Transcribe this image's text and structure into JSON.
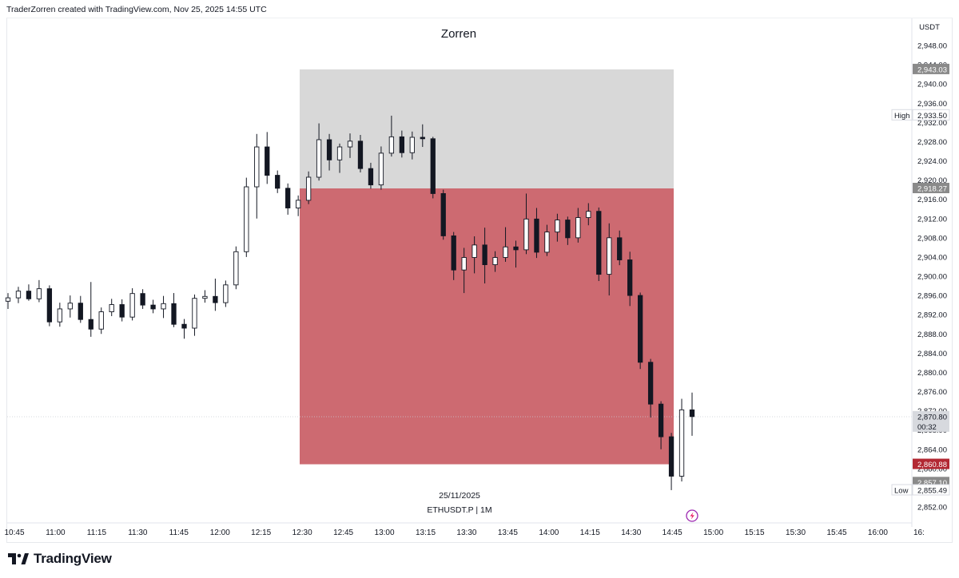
{
  "attribution": "TraderZorren created with TradingView.com, Nov 25, 2025 14:55 UTC",
  "brand": "TradingView",
  "colors": {
    "loss_zone": "#c0454d",
    "neutral_zone": "#c8c8c8",
    "candle": "#131722",
    "sl_tag": "#b22833",
    "tag_gray": "#8a8a8a"
  },
  "chart_data": {
    "type": "candlestick",
    "title": "Zorren",
    "currency": "USDT",
    "date_label": "25/11/2025",
    "symbol_label": "ETHUSDT.P | 1M",
    "x_ticks": [
      "10:45",
      "11:00",
      "11:15",
      "11:30",
      "11:45",
      "12:00",
      "12:15",
      "12:30",
      "12:45",
      "13:00",
      "13:15",
      "13:30",
      "13:45",
      "14:00",
      "14:15",
      "14:30",
      "14:45",
      "15:00",
      "15:15",
      "15:30",
      "15:45",
      "16:00",
      "16:"
    ],
    "y_ticks": [
      "2,948.00",
      "2,944.00",
      "2,940.00",
      "2,936.00",
      "2,932.00",
      "2,928.00",
      "2,924.00",
      "2,920.00",
      "2,916.00",
      "2,912.00",
      "2,908.00",
      "2,904.00",
      "2,900.00",
      "2,896.00",
      "2,892.00",
      "2,888.00",
      "2,884.00",
      "2,880.00",
      "2,876.00",
      "2,872.00",
      "2,868.00",
      "2,864.00",
      "2,860.00",
      "2,856.00",
      "2,852.00"
    ],
    "y_range": [
      2851,
      2950
    ],
    "price_tags": [
      {
        "name": "target",
        "label": "",
        "value": "2,943.03",
        "price": 2943.03,
        "style": "gray"
      },
      {
        "name": "high",
        "label": "High",
        "value": "2,933.50",
        "price": 2933.5,
        "style": "outline"
      },
      {
        "name": "entry",
        "label": "",
        "value": "2,918.27",
        "price": 2918.27,
        "style": "gray"
      },
      {
        "name": "current",
        "label": "",
        "value": "2,870.80",
        "sub": "00:32",
        "price": 2870.8,
        "style": "light"
      },
      {
        "name": "stop",
        "label": "",
        "value": "2,860.88",
        "price": 2860.88,
        "style": "red"
      },
      {
        "name": "last-close",
        "label": "",
        "value": "2,857.10",
        "price": 2857.1,
        "style": "gray"
      },
      {
        "name": "low",
        "label": "Low",
        "value": "2,855.49",
        "price": 2855.49,
        "style": "outline"
      }
    ],
    "position": {
      "type": "short",
      "entry": 2918.27,
      "target": 2943.03,
      "stop": 2860.88,
      "start": "12:30",
      "end": "14:49"
    },
    "series": [
      {
        "time": "10:45",
        "open": 2894.8,
        "high": 2896.5,
        "low": 2893.2,
        "close": 2895.5
      },
      {
        "time": "10:50",
        "open": 2895.5,
        "high": 2897.8,
        "low": 2894.4,
        "close": 2896.9
      },
      {
        "time": "10:55",
        "open": 2896.9,
        "high": 2898.3,
        "low": 2894.9,
        "close": 2895.3
      },
      {
        "time": "11:00",
        "open": 2895.3,
        "high": 2899.2,
        "low": 2894.6,
        "close": 2897.4
      },
      {
        "time": "11:05",
        "open": 2897.4,
        "high": 2898.1,
        "low": 2889.6,
        "close": 2890.5
      },
      {
        "time": "11:10",
        "open": 2890.5,
        "high": 2894.5,
        "low": 2889.5,
        "close": 2893.2
      },
      {
        "time": "11:15",
        "open": 2893.2,
        "high": 2896.0,
        "low": 2891.4,
        "close": 2894.4
      },
      {
        "time": "11:20",
        "open": 2894.4,
        "high": 2895.9,
        "low": 2890.3,
        "close": 2891.0
      },
      {
        "time": "11:25",
        "open": 2891.0,
        "high": 2898.8,
        "low": 2887.4,
        "close": 2889.0
      },
      {
        "time": "11:30",
        "open": 2889.0,
        "high": 2893.5,
        "low": 2888.0,
        "close": 2892.6
      },
      {
        "time": "11:35",
        "open": 2892.6,
        "high": 2895.3,
        "low": 2891.7,
        "close": 2894.1
      },
      {
        "time": "11:40",
        "open": 2894.1,
        "high": 2895.2,
        "low": 2890.6,
        "close": 2891.5
      },
      {
        "time": "11:45",
        "open": 2891.5,
        "high": 2897.5,
        "low": 2890.8,
        "close": 2896.4
      },
      {
        "time": "11:50",
        "open": 2896.4,
        "high": 2897.3,
        "low": 2893.2,
        "close": 2894.0
      },
      {
        "time": "11:55",
        "open": 2894.0,
        "high": 2895.1,
        "low": 2892.3,
        "close": 2893.2
      },
      {
        "time": "12:00",
        "open": 2893.2,
        "high": 2895.9,
        "low": 2891.3,
        "close": 2894.3
      },
      {
        "time": "12:05",
        "open": 2894.3,
        "high": 2896.5,
        "low": 2889.4,
        "close": 2890.0
      },
      {
        "time": "12:10",
        "open": 2890.0,
        "high": 2891.1,
        "low": 2887.0,
        "close": 2889.2
      },
      {
        "time": "12:15",
        "open": 2889.2,
        "high": 2896.2,
        "low": 2887.6,
        "close": 2895.4
      },
      {
        "time": "12:20",
        "open": 2895.4,
        "high": 2897.1,
        "low": 2894.5,
        "close": 2895.8
      },
      {
        "time": "12:25",
        "open": 2895.8,
        "high": 2899.5,
        "low": 2892.8,
        "close": 2894.5
      },
      {
        "time": "12:30",
        "open": 2894.5,
        "high": 2899.1,
        "low": 2893.6,
        "close": 2898.2
      },
      {
        "time": "12:35",
        "open": 2898.2,
        "high": 2906.2,
        "low": 2897.3,
        "close": 2905.1
      },
      {
        "time": "12:40",
        "open": 2905.1,
        "high": 2920.5,
        "low": 2904.0,
        "close": 2918.6
      },
      {
        "time": "12:45",
        "open": 2918.6,
        "high": 2929.6,
        "low": 2912.0,
        "close": 2926.9
      },
      {
        "time": "12:50",
        "open": 2926.9,
        "high": 2930.0,
        "low": 2919.2,
        "close": 2921.0
      },
      {
        "time": "12:55",
        "open": 2921.0,
        "high": 2922.0,
        "low": 2917.3,
        "close": 2918.3
      },
      {
        "time": "13:00",
        "open": 2918.3,
        "high": 2919.3,
        "low": 2912.8,
        "close": 2914.2
      },
      {
        "time": "13:05",
        "open": 2914.2,
        "high": 2916.8,
        "low": 2912.5,
        "close": 2915.8
      },
      {
        "time": "13:10",
        "open": 2915.8,
        "high": 2921.8,
        "low": 2915.0,
        "close": 2920.6
      },
      {
        "time": "13:15",
        "open": 2920.6,
        "high": 2931.8,
        "low": 2919.9,
        "close": 2928.4
      },
      {
        "time": "13:20",
        "open": 2928.4,
        "high": 2929.6,
        "low": 2922.0,
        "close": 2924.2
      },
      {
        "time": "13:25",
        "open": 2924.2,
        "high": 2927.6,
        "low": 2921.5,
        "close": 2926.9
      },
      {
        "time": "13:30",
        "open": 2926.9,
        "high": 2929.7,
        "low": 2924.6,
        "close": 2928.1
      },
      {
        "time": "13:35",
        "open": 2928.1,
        "high": 2929.4,
        "low": 2921.6,
        "close": 2922.4
      },
      {
        "time": "13:40",
        "open": 2922.4,
        "high": 2923.6,
        "low": 2918.2,
        "close": 2919.0
      },
      {
        "time": "13:45",
        "open": 2919.0,
        "high": 2927.0,
        "low": 2918.0,
        "close": 2925.6
      },
      {
        "time": "13:50",
        "open": 2925.6,
        "high": 2933.4,
        "low": 2924.9,
        "close": 2929.0
      },
      {
        "time": "13:55",
        "open": 2929.0,
        "high": 2930.3,
        "low": 2924.7,
        "close": 2925.7
      },
      {
        "time": "14:00",
        "open": 2925.7,
        "high": 2930.1,
        "low": 2924.3,
        "close": 2928.9
      },
      {
        "time": "14:05",
        "open": 2928.9,
        "high": 2931.6,
        "low": 2926.9,
        "close": 2928.6
      },
      {
        "time": "14:10",
        "open": 2928.6,
        "high": 2929.0,
        "low": 2916.2,
        "close": 2917.2
      },
      {
        "time": "14:15",
        "open": 2917.2,
        "high": 2918.0,
        "low": 2907.6,
        "close": 2908.4
      },
      {
        "time": "14:20",
        "open": 2908.4,
        "high": 2909.2,
        "low": 2899.2,
        "close": 2901.3
      },
      {
        "time": "14:25",
        "open": 2901.3,
        "high": 2905.9,
        "low": 2896.5,
        "close": 2903.9
      },
      {
        "time": "14:30",
        "open": 2903.9,
        "high": 2908.3,
        "low": 2900.6,
        "close": 2906.5
      },
      {
        "time": "14:35",
        "open": 2906.5,
        "high": 2910.1,
        "low": 2898.5,
        "close": 2902.4
      },
      {
        "time": "14:40",
        "open": 2902.4,
        "high": 2905.2,
        "low": 2900.9,
        "close": 2903.9
      },
      {
        "time": "14:45",
        "open": 2903.9,
        "high": 2910.2,
        "low": 2903.0,
        "close": 2906.1
      },
      {
        "time": "14:50",
        "open": 2906.1,
        "high": 2907.4,
        "low": 2901.8,
        "close": 2905.5
      },
      {
        "time": "14:55",
        "open": 2905.5,
        "high": 2917.2,
        "low": 2904.6,
        "close": 2911.9
      },
      {
        "time": "15:00",
        "open": 2911.9,
        "high": 2914.2,
        "low": 2903.8,
        "close": 2905.0
      },
      {
        "time": "15:05",
        "open": 2905.0,
        "high": 2910.7,
        "low": 2904.2,
        "close": 2909.2
      },
      {
        "time": "15:10",
        "open": 2909.2,
        "high": 2913.0,
        "low": 2907.2,
        "close": 2911.7
      },
      {
        "time": "15:15",
        "open": 2911.7,
        "high": 2912.4,
        "low": 2906.5,
        "close": 2908.0
      },
      {
        "time": "15:20",
        "open": 2908.0,
        "high": 2914.2,
        "low": 2907.0,
        "close": 2912.2
      },
      {
        "time": "15:25",
        "open": 2912.2,
        "high": 2915.2,
        "low": 2910.6,
        "close": 2913.5
      },
      {
        "time": "15:30",
        "open": 2913.5,
        "high": 2914.3,
        "low": 2899.0,
        "close": 2900.4
      },
      {
        "time": "15:35",
        "open": 2900.4,
        "high": 2911.0,
        "low": 2896.0,
        "close": 2908.0
      },
      {
        "time": "15:40",
        "open": 2908.0,
        "high": 2909.5,
        "low": 2902.3,
        "close": 2903.4
      },
      {
        "time": "15:45",
        "open": 2903.4,
        "high": 2905.1,
        "low": 2893.8,
        "close": 2896.0
      },
      {
        "time": "15:50",
        "open": 2896.0,
        "high": 2896.6,
        "low": 2880.7,
        "close": 2882.1
      },
      {
        "time": "15:55",
        "open": 2882.1,
        "high": 2882.8,
        "low": 2870.6,
        "close": 2873.4
      },
      {
        "time": "16:00",
        "open": 2873.4,
        "high": 2874.0,
        "low": 2864.0,
        "close": 2866.6
      },
      {
        "time": "16:05",
        "open": 2866.6,
        "high": 2867.4,
        "low": 2855.5,
        "close": 2858.4
      },
      {
        "time": "16:10",
        "open": 2858.4,
        "high": 2874.5,
        "low": 2857.3,
        "close": 2872.2
      },
      {
        "time": "16:15",
        "open": 2872.2,
        "high": 2875.8,
        "low": 2866.8,
        "close": 2870.8
      }
    ]
  }
}
